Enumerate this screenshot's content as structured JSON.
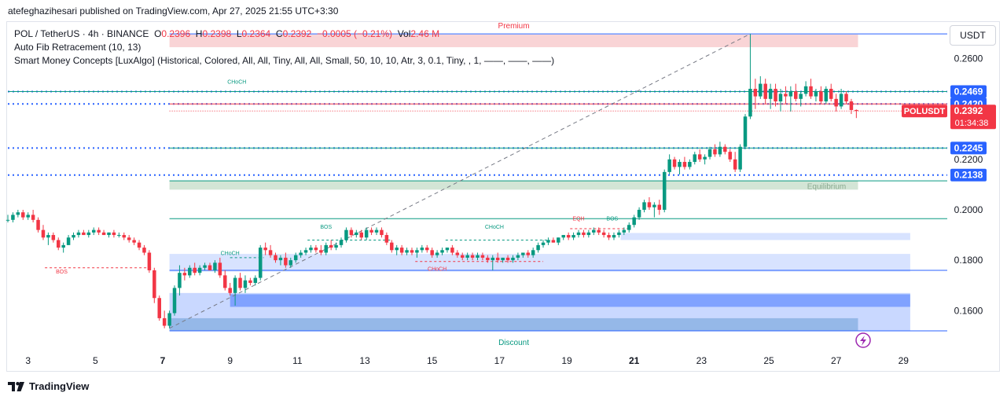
{
  "header": {
    "publish_line": "atefeghazihesari published on TradingView.com, Apr 27, 2025 21:55 UTC+3:30"
  },
  "legend": {
    "symbol": "POL / TetherUS · 4h · BINANCE",
    "o_label": "O",
    "o_value": "0.2396",
    "h_label": "H",
    "h_value": "0.2398",
    "l_label": "L",
    "l_value": "0.2364",
    "c_label": "C",
    "c_value": "0.2392",
    "change": "−0.0005 (−0.21%)",
    "vol_label": "Vol",
    "vol_value": "2.46 M",
    "indicator_1": "Auto Fib Retracement (10, 13)",
    "indicator_2": "Smart Money Concepts [LuxAlgo] (Historical, Colored, All, All, Tiny, All, All, Small, 50, 10, 10, Atr, 3, 0.1, Tiny, , 1, ——, ——, ——)"
  },
  "currency_button": "USDT",
  "footer": {
    "brand": "TradingView"
  },
  "colors": {
    "up": "#089981",
    "down": "#f23645",
    "blue": "#2962ff",
    "premium": "#f7c9cc",
    "discount": "#a9c9d9",
    "equilibrium": "#c8dfcc"
  },
  "chart_data": {
    "type": "candlestick",
    "ylim": [
      0.1445,
      0.2745
    ],
    "xlim": [
      2.4,
      30.3
    ],
    "y_ticks": [
      "0.2600",
      "0.2200",
      "0.2000",
      "0.1800",
      "0.1600"
    ],
    "y_tick_values": [
      0.26,
      0.22,
      0.2,
      0.18,
      0.16
    ],
    "x_ticks": [
      "3",
      "5",
      "7",
      "9",
      "11",
      "13",
      "15",
      "17",
      "19",
      "21",
      "23",
      "25",
      "27",
      "29"
    ],
    "x_tick_values": [
      3,
      5,
      7,
      9,
      11,
      13,
      15,
      17,
      19,
      21,
      23,
      25,
      27,
      29
    ],
    "bold_x_ticks": [
      "7",
      "21"
    ],
    "price_labels": [
      {
        "text": "0.2469",
        "value": 0.2469,
        "color": "#2962ff"
      },
      {
        "text": "0.2420",
        "value": 0.242,
        "color": "#2962ff"
      },
      {
        "text": "0.2245",
        "value": 0.2245,
        "color": "#2962ff"
      },
      {
        "text": "0.2138",
        "value": 0.2138,
        "color": "#2962ff"
      }
    ],
    "current_price": {
      "symbol": "POLUSDT",
      "price": "0.2392",
      "countdown": "01:34:38",
      "value": 0.2392
    },
    "zones": [
      {
        "name": "Premium",
        "y1": 0.2645,
        "y2": 0.2695,
        "x1": 7.2,
        "x2": 27.65,
        "kind": "premium"
      },
      {
        "name": "Equilibrium",
        "y1": 0.208,
        "y2": 0.2115,
        "x1": 7.2,
        "x2": 27.65,
        "kind": "equilibrium"
      },
      {
        "name": "Discount",
        "y1": 0.152,
        "y2": 0.157,
        "x1": 7.2,
        "x2": 27.65,
        "kind": "discount"
      }
    ],
    "order_blocks": [
      {
        "y1": 0.152,
        "y2": 0.167,
        "x1": 7.2,
        "x2": 29.2,
        "opacity": 0.25
      },
      {
        "y1": 0.1615,
        "y2": 0.1665,
        "x1": 9.0,
        "x2": 29.2,
        "opacity": 0.45
      },
      {
        "y1": 0.1755,
        "y2": 0.1825,
        "x1": 7.2,
        "x2": 29.2,
        "opacity": 0.18
      },
      {
        "y1": 0.188,
        "y2": 0.1908,
        "x1": 20.6,
        "x2": 29.2,
        "opacity": 0.18
      }
    ],
    "structure_labels": [
      {
        "text": "CHoCH",
        "x": 9.0,
        "y": 0.182,
        "color": "#089981"
      },
      {
        "text": "BOS",
        "x": 11.85,
        "y": 0.1925,
        "color": "#089981"
      },
      {
        "text": "CHoCH",
        "x": 16.85,
        "y": 0.1925,
        "color": "#089981"
      },
      {
        "text": "BOS",
        "x": 4.0,
        "y": 0.1748,
        "color": "#f23645"
      },
      {
        "text": "CHoCH",
        "x": 15.15,
        "y": 0.1758,
        "color": "#f23645"
      },
      {
        "text": "EQH",
        "x": 19.35,
        "y": 0.1958,
        "color": "#f23645"
      },
      {
        "text": "BOS",
        "x": 20.35,
        "y": 0.1958,
        "color": "#089981"
      },
      {
        "text": "CHoCH",
        "x": 9.2,
        "y": 0.25,
        "color": "#089981"
      }
    ],
    "candles": [
      [
        2.4,
        0.196,
        0.198,
        0.195,
        0.196
      ],
      [
        2.55,
        0.196,
        0.199,
        0.195,
        0.198
      ],
      [
        2.7,
        0.198,
        0.2,
        0.197,
        0.199
      ],
      [
        2.85,
        0.199,
        0.2,
        0.196,
        0.197
      ],
      [
        3.0,
        0.197,
        0.199,
        0.196,
        0.198
      ],
      [
        3.15,
        0.198,
        0.2,
        0.195,
        0.196
      ],
      [
        3.3,
        0.196,
        0.197,
        0.191,
        0.192
      ],
      [
        3.45,
        0.192,
        0.194,
        0.188,
        0.189
      ],
      [
        3.6,
        0.189,
        0.191,
        0.186,
        0.19
      ],
      [
        3.75,
        0.19,
        0.191,
        0.187,
        0.188
      ],
      [
        3.9,
        0.188,
        0.189,
        0.184,
        0.185
      ],
      [
        4.05,
        0.185,
        0.187,
        0.183,
        0.186
      ],
      [
        4.2,
        0.186,
        0.19,
        0.186,
        0.189
      ],
      [
        4.35,
        0.189,
        0.191,
        0.188,
        0.19
      ],
      [
        4.5,
        0.19,
        0.192,
        0.189,
        0.191
      ],
      [
        4.65,
        0.191,
        0.192,
        0.19,
        0.19
      ],
      [
        4.8,
        0.19,
        0.192,
        0.189,
        0.191
      ],
      [
        4.95,
        0.191,
        0.193,
        0.19,
        0.192
      ],
      [
        5.1,
        0.192,
        0.193,
        0.19,
        0.191
      ],
      [
        5.25,
        0.191,
        0.192,
        0.19,
        0.19
      ],
      [
        5.4,
        0.19,
        0.191,
        0.189,
        0.191
      ],
      [
        5.55,
        0.191,
        0.192,
        0.189,
        0.19
      ],
      [
        5.7,
        0.19,
        0.191,
        0.189,
        0.19
      ],
      [
        5.85,
        0.19,
        0.191,
        0.188,
        0.189
      ],
      [
        6.0,
        0.189,
        0.19,
        0.187,
        0.188
      ],
      [
        6.15,
        0.188,
        0.189,
        0.186,
        0.187
      ],
      [
        6.3,
        0.187,
        0.188,
        0.184,
        0.185
      ],
      [
        6.45,
        0.185,
        0.186,
        0.182,
        0.183
      ],
      [
        6.6,
        0.183,
        0.184,
        0.175,
        0.176
      ],
      [
        6.75,
        0.176,
        0.177,
        0.163,
        0.165
      ],
      [
        6.9,
        0.165,
        0.166,
        0.156,
        0.157
      ],
      [
        7.05,
        0.157,
        0.16,
        0.153,
        0.154
      ],
      [
        7.2,
        0.154,
        0.16,
        0.153,
        0.159
      ],
      [
        7.35,
        0.159,
        0.17,
        0.158,
        0.169
      ],
      [
        7.5,
        0.169,
        0.178,
        0.166,
        0.175
      ],
      [
        7.65,
        0.175,
        0.177,
        0.172,
        0.174
      ],
      [
        7.8,
        0.174,
        0.178,
        0.173,
        0.177
      ],
      [
        7.95,
        0.177,
        0.179,
        0.174,
        0.175
      ],
      [
        8.1,
        0.175,
        0.178,
        0.174,
        0.177
      ],
      [
        8.25,
        0.177,
        0.179,
        0.176,
        0.178
      ],
      [
        8.4,
        0.178,
        0.179,
        0.176,
        0.176
      ],
      [
        8.55,
        0.176,
        0.18,
        0.175,
        0.179
      ],
      [
        8.7,
        0.179,
        0.181,
        0.173,
        0.174
      ],
      [
        8.85,
        0.174,
        0.176,
        0.168,
        0.169
      ],
      [
        9.0,
        0.169,
        0.171,
        0.166,
        0.167
      ],
      [
        9.15,
        0.167,
        0.174,
        0.162,
        0.173
      ],
      [
        9.3,
        0.173,
        0.175,
        0.168,
        0.169
      ],
      [
        9.45,
        0.169,
        0.174,
        0.167,
        0.172
      ],
      [
        9.6,
        0.172,
        0.173,
        0.17,
        0.171
      ],
      [
        9.75,
        0.171,
        0.174,
        0.17,
        0.173
      ],
      [
        9.9,
        0.173,
        0.186,
        0.172,
        0.185
      ],
      [
        10.05,
        0.185,
        0.187,
        0.182,
        0.184
      ],
      [
        10.2,
        0.184,
        0.186,
        0.181,
        0.182
      ],
      [
        10.35,
        0.182,
        0.183,
        0.179,
        0.18
      ],
      [
        10.5,
        0.18,
        0.182,
        0.178,
        0.181
      ],
      [
        10.65,
        0.181,
        0.183,
        0.177,
        0.178
      ],
      [
        10.8,
        0.178,
        0.181,
        0.177,
        0.18
      ],
      [
        10.95,
        0.18,
        0.183,
        0.179,
        0.182
      ],
      [
        11.1,
        0.182,
        0.184,
        0.181,
        0.183
      ],
      [
        11.25,
        0.183,
        0.185,
        0.182,
        0.184
      ],
      [
        11.4,
        0.184,
        0.186,
        0.183,
        0.185
      ],
      [
        11.55,
        0.185,
        0.186,
        0.183,
        0.184
      ],
      [
        11.7,
        0.184,
        0.186,
        0.182,
        0.183
      ],
      [
        11.85,
        0.183,
        0.187,
        0.182,
        0.186
      ],
      [
        12.0,
        0.186,
        0.188,
        0.184,
        0.185
      ],
      [
        12.15,
        0.185,
        0.187,
        0.184,
        0.186
      ],
      [
        12.3,
        0.186,
        0.189,
        0.185,
        0.188
      ],
      [
        12.45,
        0.188,
        0.193,
        0.187,
        0.192
      ],
      [
        12.6,
        0.192,
        0.193,
        0.189,
        0.19
      ],
      [
        12.75,
        0.19,
        0.192,
        0.189,
        0.191
      ],
      [
        12.9,
        0.191,
        0.192,
        0.188,
        0.189
      ],
      [
        13.05,
        0.189,
        0.193,
        0.188,
        0.192
      ],
      [
        13.2,
        0.192,
        0.193,
        0.19,
        0.191
      ],
      [
        13.35,
        0.191,
        0.193,
        0.19,
        0.192
      ],
      [
        13.5,
        0.192,
        0.193,
        0.189,
        0.19
      ],
      [
        13.65,
        0.19,
        0.191,
        0.186,
        0.187
      ],
      [
        13.8,
        0.187,
        0.188,
        0.183,
        0.184
      ],
      [
        13.95,
        0.184,
        0.186,
        0.182,
        0.185
      ],
      [
        14.1,
        0.185,
        0.186,
        0.182,
        0.183
      ],
      [
        14.25,
        0.183,
        0.185,
        0.182,
        0.184
      ],
      [
        14.4,
        0.184,
        0.185,
        0.182,
        0.183
      ],
      [
        14.55,
        0.183,
        0.185,
        0.181,
        0.184
      ],
      [
        14.7,
        0.184,
        0.186,
        0.183,
        0.185
      ],
      [
        14.85,
        0.185,
        0.186,
        0.183,
        0.184
      ],
      [
        15.0,
        0.184,
        0.185,
        0.181,
        0.182
      ],
      [
        15.15,
        0.182,
        0.184,
        0.181,
        0.183
      ],
      [
        15.3,
        0.183,
        0.185,
        0.182,
        0.184
      ],
      [
        15.45,
        0.184,
        0.185,
        0.183,
        0.185
      ],
      [
        15.6,
        0.185,
        0.186,
        0.182,
        0.183
      ],
      [
        15.75,
        0.183,
        0.184,
        0.181,
        0.182
      ],
      [
        15.9,
        0.182,
        0.183,
        0.18,
        0.181
      ],
      [
        16.05,
        0.181,
        0.183,
        0.18,
        0.182
      ],
      [
        16.2,
        0.182,
        0.183,
        0.18,
        0.181
      ],
      [
        16.35,
        0.181,
        0.183,
        0.18,
        0.182
      ],
      [
        16.5,
        0.182,
        0.183,
        0.18,
        0.181
      ],
      [
        16.65,
        0.181,
        0.182,
        0.179,
        0.18
      ],
      [
        16.8,
        0.18,
        0.182,
        0.176,
        0.181
      ],
      [
        16.95,
        0.181,
        0.183,
        0.179,
        0.18
      ],
      [
        17.1,
        0.18,
        0.181,
        0.179,
        0.181
      ],
      [
        17.25,
        0.181,
        0.182,
        0.179,
        0.18
      ],
      [
        17.4,
        0.18,
        0.182,
        0.179,
        0.181
      ],
      [
        17.55,
        0.181,
        0.183,
        0.18,
        0.182
      ],
      [
        17.7,
        0.182,
        0.183,
        0.181,
        0.183
      ],
      [
        17.85,
        0.183,
        0.184,
        0.181,
        0.182
      ],
      [
        18.0,
        0.182,
        0.185,
        0.181,
        0.184
      ],
      [
        18.15,
        0.184,
        0.187,
        0.183,
        0.186
      ],
      [
        18.3,
        0.186,
        0.188,
        0.185,
        0.187
      ],
      [
        18.45,
        0.187,
        0.189,
        0.186,
        0.188
      ],
      [
        18.6,
        0.188,
        0.189,
        0.187,
        0.187
      ],
      [
        18.75,
        0.187,
        0.189,
        0.186,
        0.189
      ],
      [
        18.9,
        0.189,
        0.19,
        0.188,
        0.19
      ],
      [
        19.05,
        0.19,
        0.191,
        0.188,
        0.189
      ],
      [
        19.2,
        0.189,
        0.191,
        0.188,
        0.19
      ],
      [
        19.35,
        0.19,
        0.192,
        0.189,
        0.191
      ],
      [
        19.5,
        0.191,
        0.192,
        0.189,
        0.19
      ],
      [
        19.65,
        0.19,
        0.192,
        0.189,
        0.191
      ],
      [
        19.8,
        0.191,
        0.193,
        0.19,
        0.192
      ],
      [
        19.95,
        0.192,
        0.193,
        0.19,
        0.191
      ],
      [
        20.1,
        0.191,
        0.192,
        0.189,
        0.19
      ],
      [
        20.25,
        0.19,
        0.191,
        0.188,
        0.189
      ],
      [
        20.4,
        0.189,
        0.191,
        0.188,
        0.19
      ],
      [
        20.55,
        0.19,
        0.192,
        0.189,
        0.191
      ],
      [
        20.7,
        0.191,
        0.193,
        0.19,
        0.192
      ],
      [
        20.85,
        0.192,
        0.195,
        0.191,
        0.194
      ],
      [
        21.0,
        0.194,
        0.198,
        0.193,
        0.197
      ],
      [
        21.15,
        0.197,
        0.201,
        0.196,
        0.2
      ],
      [
        21.3,
        0.2,
        0.204,
        0.199,
        0.203
      ],
      [
        21.45,
        0.203,
        0.205,
        0.2,
        0.201
      ],
      [
        21.6,
        0.201,
        0.203,
        0.197,
        0.202
      ],
      [
        21.75,
        0.202,
        0.204,
        0.198,
        0.2
      ],
      [
        21.9,
        0.2,
        0.216,
        0.199,
        0.215
      ],
      [
        22.05,
        0.215,
        0.222,
        0.214,
        0.22
      ],
      [
        22.2,
        0.22,
        0.221,
        0.216,
        0.217
      ],
      [
        22.35,
        0.217,
        0.22,
        0.214,
        0.219
      ],
      [
        22.5,
        0.219,
        0.221,
        0.216,
        0.217
      ],
      [
        22.65,
        0.217,
        0.22,
        0.216,
        0.219
      ],
      [
        22.8,
        0.219,
        0.223,
        0.218,
        0.222
      ],
      [
        22.95,
        0.222,
        0.224,
        0.219,
        0.22
      ],
      [
        23.1,
        0.22,
        0.222,
        0.218,
        0.221
      ],
      [
        23.25,
        0.221,
        0.225,
        0.22,
        0.224
      ],
      [
        23.4,
        0.224,
        0.226,
        0.221,
        0.222
      ],
      [
        23.55,
        0.222,
        0.227,
        0.221,
        0.225
      ],
      [
        23.7,
        0.225,
        0.226,
        0.222,
        0.223
      ],
      [
        23.85,
        0.223,
        0.224,
        0.219,
        0.22
      ],
      [
        24.0,
        0.22,
        0.223,
        0.215,
        0.216
      ],
      [
        24.15,
        0.216,
        0.226,
        0.215,
        0.225
      ],
      [
        24.3,
        0.225,
        0.238,
        0.224,
        0.237
      ],
      [
        24.45,
        0.237,
        0.2698,
        0.236,
        0.248
      ],
      [
        24.6,
        0.248,
        0.252,
        0.24,
        0.245
      ],
      [
        24.75,
        0.245,
        0.253,
        0.244,
        0.25
      ],
      [
        24.9,
        0.25,
        0.252,
        0.242,
        0.244
      ],
      [
        25.05,
        0.244,
        0.25,
        0.24,
        0.248
      ],
      [
        25.2,
        0.248,
        0.25,
        0.241,
        0.243
      ],
      [
        25.35,
        0.243,
        0.248,
        0.239,
        0.246
      ],
      [
        25.5,
        0.246,
        0.249,
        0.242,
        0.245
      ],
      [
        25.65,
        0.245,
        0.249,
        0.239,
        0.247
      ],
      [
        25.8,
        0.247,
        0.25,
        0.243,
        0.244
      ],
      [
        25.95,
        0.244,
        0.247,
        0.241,
        0.246
      ],
      [
        26.1,
        0.246,
        0.251,
        0.245,
        0.249
      ],
      [
        26.25,
        0.249,
        0.252,
        0.244,
        0.245
      ],
      [
        26.4,
        0.245,
        0.248,
        0.243,
        0.247
      ],
      [
        26.55,
        0.247,
        0.249,
        0.242,
        0.243
      ],
      [
        26.7,
        0.243,
        0.249,
        0.242,
        0.248
      ],
      [
        26.85,
        0.248,
        0.25,
        0.243,
        0.244
      ],
      [
        27.0,
        0.244,
        0.246,
        0.239,
        0.241
      ],
      [
        27.15,
        0.241,
        0.248,
        0.24,
        0.246
      ],
      [
        27.3,
        0.246,
        0.247,
        0.242,
        0.243
      ],
      [
        27.45,
        0.243,
        0.244,
        0.238,
        0.2396
      ],
      [
        27.6,
        0.2396,
        0.2398,
        0.2364,
        0.2392
      ]
    ]
  }
}
